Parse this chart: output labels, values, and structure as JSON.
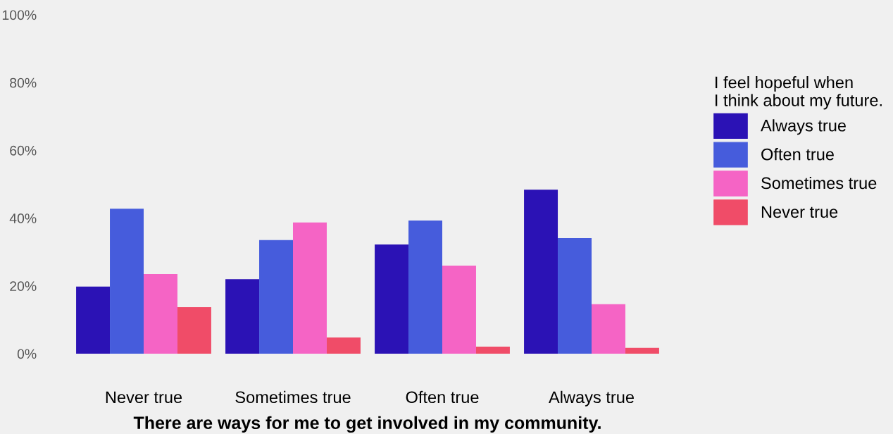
{
  "chart_data": {
    "type": "bar",
    "xlabel": "There are ways for me to get involved in my community.",
    "legend_title": "I feel hopeful when\nI think about my future.",
    "categories": [
      "Never true",
      "Sometimes true",
      "Often true",
      "Always true"
    ],
    "series": [
      {
        "name": "Always true",
        "color": "#2b12b5",
        "values": [
          19.8,
          22.0,
          32.2,
          48.4
        ]
      },
      {
        "name": "Often true",
        "color": "#465cdc",
        "values": [
          42.8,
          33.5,
          39.3,
          34.1
        ]
      },
      {
        "name": "Sometimes true",
        "color": "#f564c5",
        "values": [
          23.5,
          38.7,
          26.0,
          14.6
        ]
      },
      {
        "name": "Never true",
        "color": "#f04c68",
        "values": [
          13.7,
          4.8,
          2.1,
          1.7
        ]
      }
    ],
    "ylim": [
      0,
      100
    ],
    "yticks": [
      {
        "value": 0,
        "label": "0%"
      },
      {
        "value": 20,
        "label": "20%"
      },
      {
        "value": 40,
        "label": "40%"
      },
      {
        "value": 60,
        "label": "60%"
      },
      {
        "value": 80,
        "label": "80%"
      },
      {
        "value": 100,
        "label": "100%"
      }
    ],
    "grid": false,
    "legend": "right"
  }
}
